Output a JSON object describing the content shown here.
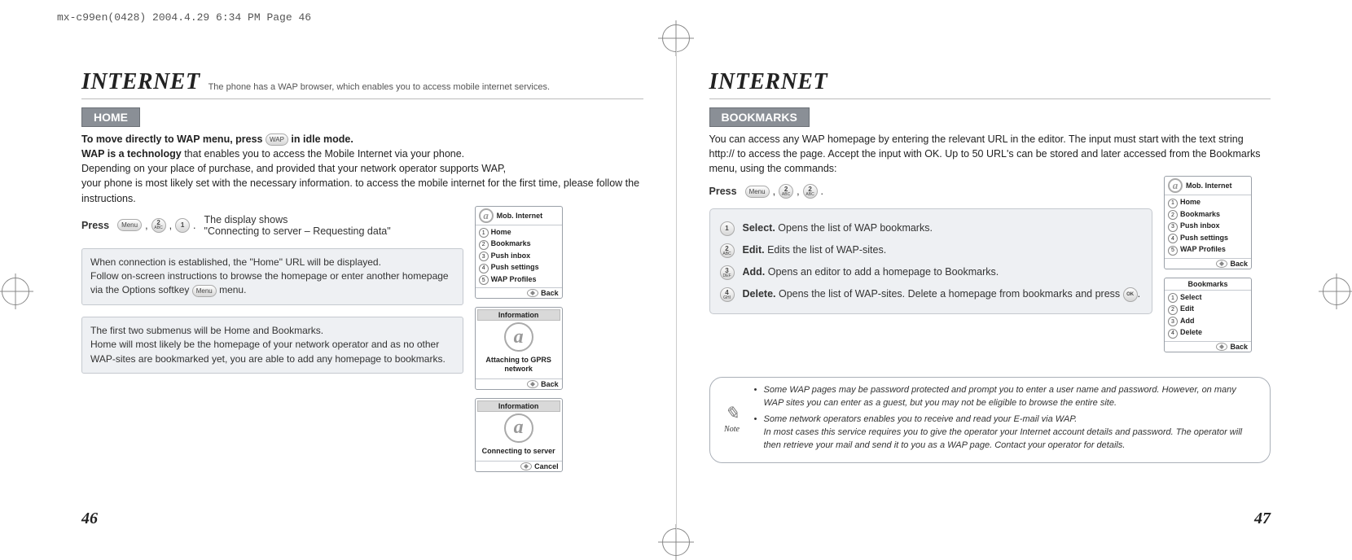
{
  "meta": {
    "header_line": "mx-c99en(0428)  2004.4.29  6:34 PM  Page 46"
  },
  "left": {
    "title": "INTERNET",
    "subtitle": "The phone has a WAP browser, which enables you to access mobile internet services.",
    "section": "HOME",
    "intro1_strong": "To move directly to WAP menu, press ",
    "intro1_tail": "in idle mode.",
    "intro2_strong": "WAP is a technology",
    "intro2_tail": " that enables you to access the Mobile Internet via your phone.",
    "intro3": "Depending on your place of purchase, and provided that your network operator supports WAP,",
    "intro4": "your phone is most likely set with the necessary information. to access the mobile internet for the first time, please follow the instructions.",
    "press_label": "Press",
    "press_trail_period": ".",
    "display_shows": "The display shows",
    "display_msg": "\"Connecting to server – Requesting data\"",
    "box1": "When connection is established, the \"Home\" URL will be displayed.\nFollow on-screen instructions to browse the homepage or enter another homepage via the Options softkey  menu.",
    "box2": "The first two submenus will be Home and Bookmarks.\nHome will most likely be the homepage of your network operator and as no other WAP-sites are bookmarked yet, you are able to add any homepage to bookmarks.",
    "page_num": "46",
    "phone1": {
      "title": "Mob. Internet",
      "items": [
        "Home",
        "Bookmarks",
        "Push inbox",
        "Push settings",
        "WAP Profiles"
      ],
      "footer": "Back"
    },
    "phone2": {
      "bar": "Information",
      "msg": "Attaching to GPRS network",
      "footer": "Back"
    },
    "phone3": {
      "bar": "Information",
      "msg": "Connecting to server",
      "footer": "Cancel"
    }
  },
  "right": {
    "title": "INTERNET",
    "section": "BOOKMARKS",
    "intro": "You can access any WAP homepage by entering the relevant URL in the editor. The input must start with the text string http:// to access the page. Accept the input with OK. Up to 50 URL's can be stored and later accessed from the Bookmarks menu, using the commands:",
    "press_label": "Press",
    "press_trail_period": ".",
    "cmds": [
      {
        "key_num": "1",
        "key_sub": "",
        "title": "Select.",
        "text": "Opens the list of WAP bookmarks."
      },
      {
        "key_num": "2",
        "key_sub": "ABC",
        "title": "Edit.",
        "text": "Edits the list of WAP-sites."
      },
      {
        "key_num": "3",
        "key_sub": "DEF",
        "title": "Add.",
        "text": "Opens an editor to add a homepage to Bookmarks."
      },
      {
        "key_num": "4",
        "key_sub": "GHI",
        "title": "Delete.",
        "text_pre": "Opens the list of WAP-sites. Delete a homepage from bookmarks and press ",
        "text_post": "."
      }
    ],
    "phone1": {
      "title": "Mob. Internet",
      "items": [
        "Home",
        "Bookmarks",
        "Push inbox",
        "Push settings",
        "WAP Profiles"
      ],
      "footer": "Back"
    },
    "phone2": {
      "title": "Bookmarks",
      "items": [
        "Select",
        "Edit",
        "Add",
        "Delete"
      ],
      "footer": "Back"
    },
    "note": {
      "label": "Note",
      "items": [
        "Some WAP pages may be password protected and prompt you to enter a user name and password. However, on many WAP sites you can enter as a guest, but you may not be eligible to browse the entire site.",
        "Some network operators enables you to receive and read your E-mail via WAP.\nIn most cases this service requires you to give the operator your Internet account details and password. The operator will then retrieve your mail and send it to you as a WAP page. Contact your operator for details."
      ]
    },
    "page_num": "47"
  },
  "keys": {
    "menu": "Menu",
    "wap": "WAP",
    "ok": "OK",
    "k1": {
      "num": "1",
      "sub": ""
    },
    "k2": {
      "num": "2",
      "sub": "ABC"
    }
  },
  "style": {
    "bg": "#ffffff",
    "tab_bg": "#8a8f96",
    "box_bg": "#eef0f3",
    "border": "#c5c9cf"
  }
}
